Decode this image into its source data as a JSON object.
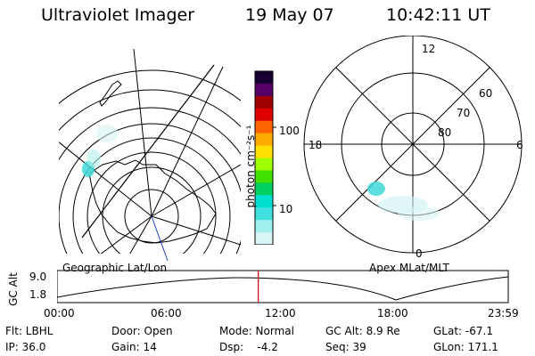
{
  "header": {
    "instrument": "Ultraviolet Imager",
    "date": "19 May 07",
    "time": "10:42:11 UT"
  },
  "left_panel": {
    "label": "Geographic Lat/Lon"
  },
  "right_panel": {
    "label": "Apex MLat/MLT",
    "mlt_labels": {
      "top": "12",
      "right": "6",
      "bottom": "0",
      "left": "18"
    },
    "lat_labels": [
      "60",
      "70",
      "80"
    ]
  },
  "colorbar": {
    "unit_label": "photon cm⁻²s⁻¹",
    "ticks": [
      "100",
      "10"
    ],
    "colors": [
      "#1a0030",
      "#550066",
      "#a00000",
      "#e00000",
      "#ff6600",
      "#ffaa00",
      "#ffe000",
      "#a0ff00",
      "#40e000",
      "#00d060",
      "#00e0d0",
      "#40e0e0",
      "#a0f0f0",
      "#d8f4f4"
    ]
  },
  "altitude_plot": {
    "ylabel": "GC Alt",
    "yticks": [
      "9.0",
      "1.8"
    ],
    "xticks": [
      "00:00",
      "06:00",
      "12:00",
      "18:00",
      "23:59"
    ],
    "marker_time_fraction": 0.446
  },
  "footer": {
    "flt": "Flt: LBHL",
    "ip": "IP: 36.0",
    "door": "Door: Open",
    "gain": "Gain: 14",
    "mode": "Mode: Normal",
    "dsp": "Dsp:    -4.2",
    "gc_alt": "GC Alt: 8.9 Re",
    "seq": "Seq: 39",
    "glat": "GLat: -67.1",
    "glon": "GLon: 171.1"
  }
}
